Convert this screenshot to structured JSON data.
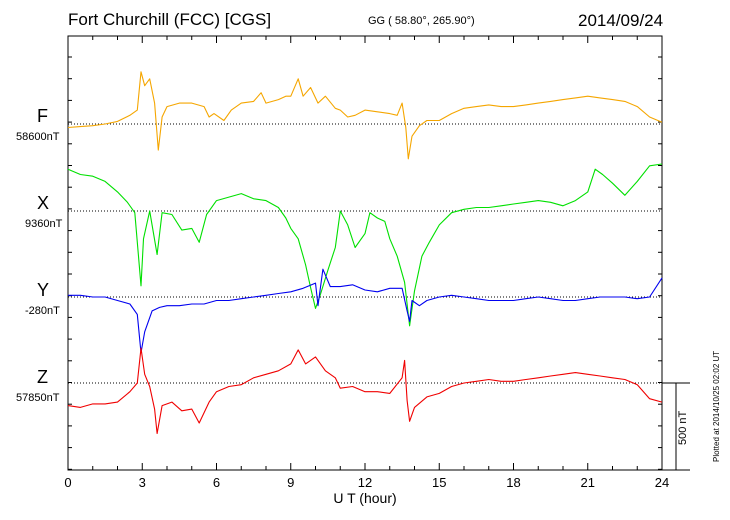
{
  "header": {
    "title": "Fort Churchill (FCC)  [CGS]",
    "coords": "GG ( 58.80°, 265.90°)",
    "date": "2014/09/24"
  },
  "scale_bar_label": "500 nT",
  "plotted_note": "Plotted at 2014/10/25 02:02 UT",
  "chart_data": {
    "type": "line",
    "xlabel": "U T (hour)",
    "xlim": [
      0,
      24
    ],
    "x_ticks": [
      "0",
      "3",
      "6",
      "9",
      "12",
      "15",
      "18",
      "21",
      "24"
    ],
    "scale_bar_nT": 500,
    "series": [
      {
        "name": "F",
        "baseline_label": "58600nT",
        "color": "#f5a600",
        "points": [
          [
            0,
            58580
          ],
          [
            0.5,
            58585
          ],
          [
            1,
            58590
          ],
          [
            1.5,
            58600
          ],
          [
            2,
            58615
          ],
          [
            2.5,
            58650
          ],
          [
            2.8,
            58680
          ],
          [
            2.95,
            58900
          ],
          [
            3.1,
            58820
          ],
          [
            3.3,
            58860
          ],
          [
            3.5,
            58720
          ],
          [
            3.65,
            58450
          ],
          [
            3.8,
            58640
          ],
          [
            4,
            58700
          ],
          [
            4.5,
            58720
          ],
          [
            5,
            58720
          ],
          [
            5.5,
            58700
          ],
          [
            5.7,
            58640
          ],
          [
            5.9,
            58660
          ],
          [
            6.3,
            58620
          ],
          [
            6.6,
            58680
          ],
          [
            7,
            58720
          ],
          [
            7.5,
            58730
          ],
          [
            7.8,
            58780
          ],
          [
            8,
            58720
          ],
          [
            8.5,
            58740
          ],
          [
            8.8,
            58760
          ],
          [
            9,
            58760
          ],
          [
            9.3,
            58860
          ],
          [
            9.5,
            58760
          ],
          [
            9.8,
            58810
          ],
          [
            10.1,
            58720
          ],
          [
            10.4,
            58760
          ],
          [
            10.8,
            58690
          ],
          [
            11,
            58680
          ],
          [
            11.3,
            58640
          ],
          [
            11.6,
            58650
          ],
          [
            12,
            58680
          ],
          [
            12.5,
            58670
          ],
          [
            13,
            58660
          ],
          [
            13.3,
            58650
          ],
          [
            13.5,
            58720
          ],
          [
            13.65,
            58580
          ],
          [
            13.75,
            58400
          ],
          [
            13.9,
            58530
          ],
          [
            14.2,
            58590
          ],
          [
            14.5,
            58620
          ],
          [
            15,
            58620
          ],
          [
            15.5,
            58660
          ],
          [
            16,
            58690
          ],
          [
            16.5,
            58700
          ],
          [
            17,
            58710
          ],
          [
            17.5,
            58700
          ],
          [
            18,
            58700
          ],
          [
            18.5,
            58710
          ],
          [
            19,
            58720
          ],
          [
            19.5,
            58730
          ],
          [
            20,
            58740
          ],
          [
            20.5,
            58750
          ],
          [
            21,
            58760
          ],
          [
            21.5,
            58750
          ],
          [
            22,
            58740
          ],
          [
            22.5,
            58730
          ],
          [
            23,
            58700
          ],
          [
            23.5,
            58640
          ],
          [
            24,
            58610
          ]
        ]
      },
      {
        "name": "X",
        "baseline_label": "9360nT",
        "color": "#00e000",
        "points": [
          [
            0,
            9600
          ],
          [
            0.5,
            9570
          ],
          [
            1,
            9560
          ],
          [
            1.5,
            9530
          ],
          [
            2,
            9470
          ],
          [
            2.4,
            9410
          ],
          [
            2.7,
            9350
          ],
          [
            2.95,
            8930
          ],
          [
            3.05,
            9200
          ],
          [
            3.3,
            9360
          ],
          [
            3.6,
            9110
          ],
          [
            3.8,
            9350
          ],
          [
            4.2,
            9340
          ],
          [
            4.6,
            9250
          ],
          [
            5,
            9260
          ],
          [
            5.3,
            9180
          ],
          [
            5.6,
            9340
          ],
          [
            6,
            9420
          ],
          [
            6.5,
            9440
          ],
          [
            7,
            9460
          ],
          [
            7.5,
            9430
          ],
          [
            8,
            9420
          ],
          [
            8.5,
            9380
          ],
          [
            8.8,
            9320
          ],
          [
            9,
            9260
          ],
          [
            9.3,
            9200
          ],
          [
            9.6,
            9050
          ],
          [
            9.8,
            8920
          ],
          [
            10,
            8800
          ],
          [
            10.2,
            8880
          ],
          [
            10.5,
            9020
          ],
          [
            10.8,
            9150
          ],
          [
            11,
            9360
          ],
          [
            11.3,
            9280
          ],
          [
            11.6,
            9150
          ],
          [
            12,
            9230
          ],
          [
            12.2,
            9350
          ],
          [
            12.5,
            9320
          ],
          [
            12.8,
            9300
          ],
          [
            13,
            9200
          ],
          [
            13.3,
            9100
          ],
          [
            13.6,
            8950
          ],
          [
            13.8,
            8700
          ],
          [
            14,
            8900
          ],
          [
            14.3,
            9100
          ],
          [
            14.6,
            9180
          ],
          [
            15,
            9280
          ],
          [
            15.5,
            9350
          ],
          [
            16,
            9370
          ],
          [
            16.5,
            9380
          ],
          [
            17,
            9380
          ],
          [
            17.5,
            9390
          ],
          [
            18,
            9400
          ],
          [
            18.5,
            9410
          ],
          [
            19,
            9420
          ],
          [
            19.5,
            9410
          ],
          [
            20,
            9390
          ],
          [
            20.5,
            9420
          ],
          [
            21,
            9470
          ],
          [
            21.3,
            9600
          ],
          [
            21.6,
            9570
          ],
          [
            22,
            9520
          ],
          [
            22.5,
            9450
          ],
          [
            23,
            9530
          ],
          [
            23.5,
            9620
          ],
          [
            24,
            9630
          ]
        ]
      },
      {
        "name": "Y",
        "baseline_label": "-280nT",
        "color": "#0000f0",
        "points": [
          [
            0,
            -270
          ],
          [
            0.5,
            -270
          ],
          [
            1,
            -280
          ],
          [
            1.5,
            -280
          ],
          [
            2,
            -300
          ],
          [
            2.5,
            -320
          ],
          [
            2.8,
            -380
          ],
          [
            2.95,
            -600
          ],
          [
            3.1,
            -480
          ],
          [
            3.4,
            -360
          ],
          [
            3.7,
            -340
          ],
          [
            4,
            -330
          ],
          [
            4.5,
            -330
          ],
          [
            5,
            -320
          ],
          [
            5.5,
            -320
          ],
          [
            6,
            -300
          ],
          [
            6.5,
            -300
          ],
          [
            7,
            -290
          ],
          [
            7.5,
            -280
          ],
          [
            8,
            -270
          ],
          [
            8.5,
            -260
          ],
          [
            9,
            -250
          ],
          [
            9.5,
            -230
          ],
          [
            10,
            -200
          ],
          [
            10.1,
            -330
          ],
          [
            10.3,
            -120
          ],
          [
            10.6,
            -220
          ],
          [
            11,
            -220
          ],
          [
            11.5,
            -210
          ],
          [
            12,
            -240
          ],
          [
            12.5,
            -250
          ],
          [
            13,
            -230
          ],
          [
            13.5,
            -230
          ],
          [
            13.7,
            -360
          ],
          [
            13.8,
            -420
          ],
          [
            13.9,
            -300
          ],
          [
            14.2,
            -330
          ],
          [
            14.5,
            -300
          ],
          [
            15,
            -280
          ],
          [
            15.5,
            -270
          ],
          [
            16,
            -280
          ],
          [
            16.5,
            -290
          ],
          [
            17,
            -300
          ],
          [
            17.5,
            -300
          ],
          [
            18,
            -300
          ],
          [
            18.5,
            -290
          ],
          [
            19,
            -280
          ],
          [
            19.5,
            -290
          ],
          [
            20,
            -300
          ],
          [
            20.5,
            -300
          ],
          [
            21,
            -290
          ],
          [
            21.5,
            -280
          ],
          [
            22,
            -280
          ],
          [
            22.5,
            -280
          ],
          [
            23,
            -290
          ],
          [
            23.5,
            -280
          ],
          [
            24,
            -170
          ]
        ]
      },
      {
        "name": "Z",
        "baseline_label": "57850nT",
        "color": "#f00000",
        "points": [
          [
            0,
            57720
          ],
          [
            0.5,
            57710
          ],
          [
            1,
            57730
          ],
          [
            1.5,
            57730
          ],
          [
            2,
            57740
          ],
          [
            2.5,
            57800
          ],
          [
            2.8,
            57850
          ],
          [
            2.95,
            58050
          ],
          [
            3.1,
            57900
          ],
          [
            3.3,
            57830
          ],
          [
            3.5,
            57700
          ],
          [
            3.6,
            57560
          ],
          [
            3.8,
            57720
          ],
          [
            4.2,
            57740
          ],
          [
            4.6,
            57690
          ],
          [
            5,
            57700
          ],
          [
            5.3,
            57620
          ],
          [
            5.7,
            57740
          ],
          [
            6,
            57800
          ],
          [
            6.5,
            57830
          ],
          [
            7,
            57840
          ],
          [
            7.5,
            57880
          ],
          [
            8,
            57900
          ],
          [
            8.5,
            57920
          ],
          [
            9,
            57960
          ],
          [
            9.3,
            58040
          ],
          [
            9.6,
            57960
          ],
          [
            10,
            58000
          ],
          [
            10.4,
            57920
          ],
          [
            10.8,
            57880
          ],
          [
            11,
            57820
          ],
          [
            11.5,
            57830
          ],
          [
            12,
            57800
          ],
          [
            12.5,
            57800
          ],
          [
            13,
            57790
          ],
          [
            13.5,
            57880
          ],
          [
            13.6,
            57980
          ],
          [
            13.7,
            57750
          ],
          [
            13.8,
            57630
          ],
          [
            14,
            57710
          ],
          [
            14.5,
            57770
          ],
          [
            15,
            57790
          ],
          [
            15.5,
            57830
          ],
          [
            16,
            57850
          ],
          [
            16.5,
            57860
          ],
          [
            17,
            57870
          ],
          [
            17.5,
            57860
          ],
          [
            18,
            57860
          ],
          [
            18.5,
            57870
          ],
          [
            19,
            57880
          ],
          [
            19.5,
            57890
          ],
          [
            20,
            57900
          ],
          [
            20.5,
            57910
          ],
          [
            21,
            57900
          ],
          [
            21.5,
            57890
          ],
          [
            22,
            57880
          ],
          [
            22.5,
            57870
          ],
          [
            23,
            57840
          ],
          [
            23.5,
            57760
          ],
          [
            24,
            57740
          ]
        ]
      }
    ]
  }
}
